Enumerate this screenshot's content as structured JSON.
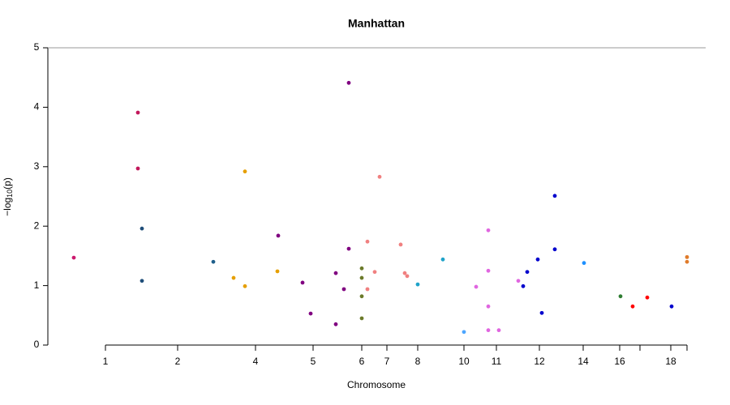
{
  "chart_data": {
    "type": "scatter",
    "title": "Manhattan",
    "x_label": "Chromosome",
    "y_label": [
      "−log",
      "10",
      "(p)"
    ],
    "xlim": [
      0,
      811
    ],
    "ylim": [
      0,
      5
    ],
    "yticks": [
      0,
      1,
      2,
      3,
      4,
      5
    ],
    "xticks": [
      {
        "value": 71,
        "label": "1"
      },
      {
        "value": 160,
        "label": "2"
      },
      {
        "value": 256,
        "label": "4"
      },
      {
        "value": 327,
        "label": "5"
      },
      {
        "value": 387,
        "label": "6"
      },
      {
        "value": 418,
        "label": "7"
      },
      {
        "value": 456,
        "label": "8"
      },
      {
        "value": 513,
        "label": "10"
      },
      {
        "value": 553,
        "label": "11"
      },
      {
        "value": 606,
        "label": "12"
      },
      {
        "value": 660,
        "label": "14"
      },
      {
        "value": 705,
        "label": "16"
      },
      {
        "value": 730,
        "label": null
      },
      {
        "value": 768,
        "label": "18"
      },
      {
        "value": 788,
        "label": null
      }
    ],
    "x": [
      32,
      111,
      111,
      116,
      116,
      204,
      229,
      243,
      243,
      283,
      284,
      314,
      324,
      355,
      355,
      365,
      371,
      371,
      387,
      387,
      387,
      387,
      394,
      394,
      403,
      409,
      435,
      440,
      443,
      456,
      487,
      513,
      528,
      543,
      543,
      543,
      543,
      556,
      580,
      586,
      591,
      604,
      609,
      625,
      625,
      661,
      706,
      721,
      739,
      769,
      788,
      788
    ],
    "values": [
      1.47,
      3.91,
      2.97,
      1.96,
      1.08,
      1.4,
      1.13,
      2.92,
      0.99,
      1.24,
      1.84,
      1.05,
      0.53,
      1.21,
      0.35,
      0.94,
      4.41,
      1.62,
      1.29,
      1.13,
      0.82,
      0.45,
      1.74,
      0.94,
      1.23,
      2.83,
      1.69,
      1.21,
      1.16,
      1.02,
      1.44,
      0.22,
      0.98,
      1.93,
      1.25,
      0.65,
      0.25,
      0.25,
      1.08,
      0.99,
      1.23,
      1.44,
      0.54,
      2.51,
      1.61,
      1.38,
      0.82,
      0.65,
      0.8,
      0.65,
      1.48,
      1.4
    ],
    "colors": [
      "#cc1a6e",
      "#c2185b",
      "#c2185b",
      "#1f4e79",
      "#1f4e79",
      "#1f5f8b",
      "#e69f00",
      "#e69f00",
      "#e69f00",
      "#e69f00",
      "#800080",
      "#800080",
      "#800080",
      "#800080",
      "#800080",
      "#800080",
      "#800080",
      "#800080",
      "#6b7a2a",
      "#6b7a2a",
      "#6b7a2a",
      "#6b7a2a",
      "#f08080",
      "#f08080",
      "#f08080",
      "#f08080",
      "#f08080",
      "#f08080",
      "#f08080",
      "#1fa3c9",
      "#1fa3c9",
      "#4da6ff",
      "#e066e0",
      "#e066e0",
      "#e066e0",
      "#e066e0",
      "#e066e0",
      "#e066e0",
      "#e066e0",
      "#0000cd",
      "#0000cd",
      "#0000cd",
      "#0000cd",
      "#0000cd",
      "#0000cd",
      "#1e90ff",
      "#2e7d32",
      "#ff0000",
      "#ff0000",
      "#0000cd",
      "#e07b2a",
      "#e07b2a"
    ]
  }
}
